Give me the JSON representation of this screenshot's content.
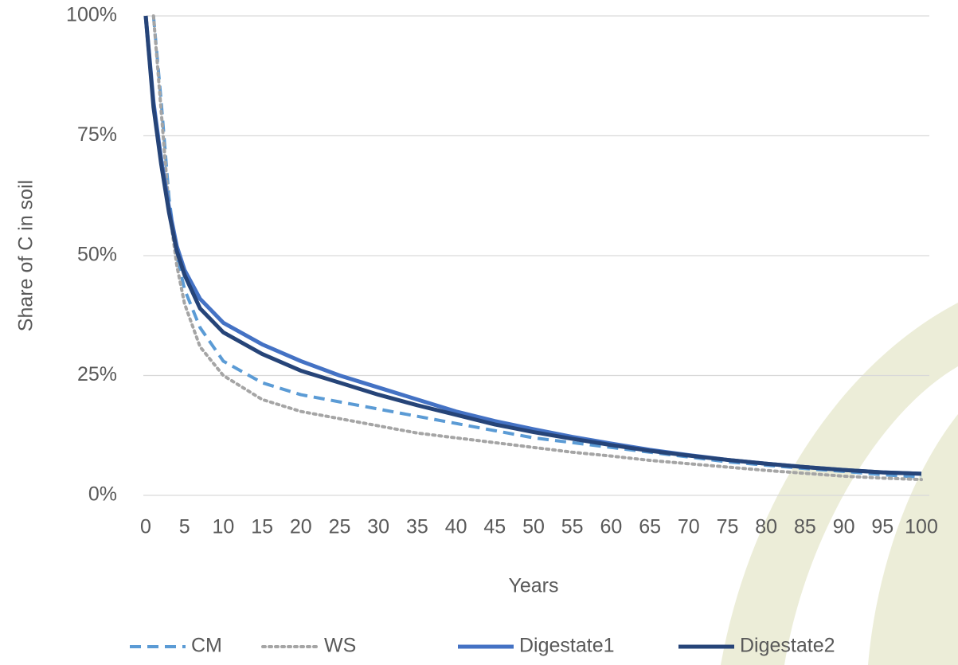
{
  "chart_data": {
    "type": "line",
    "y_label": "Share of C in soil",
    "x_label": "Years",
    "x": [
      0,
      1,
      2,
      3,
      4,
      5,
      7,
      10,
      15,
      20,
      25,
      30,
      35,
      40,
      45,
      50,
      55,
      60,
      65,
      70,
      75,
      80,
      85,
      90,
      95,
      100
    ],
    "xlim": [
      0,
      100
    ],
    "xticks": [
      0,
      5,
      10,
      15,
      20,
      25,
      30,
      35,
      40,
      45,
      50,
      55,
      60,
      65,
      70,
      75,
      80,
      85,
      90,
      95,
      100
    ],
    "ylim": [
      0,
      100
    ],
    "yticks": [
      {
        "value": 0,
        "label": "0%"
      },
      {
        "value": 25,
        "label": "25%"
      },
      {
        "value": 50,
        "label": "50%"
      },
      {
        "value": 75,
        "label": "75%"
      },
      {
        "value": 100,
        "label": "100%"
      }
    ],
    "grid": true,
    "legend": "bottom",
    "series": [
      {
        "name": "CM",
        "color": "#5b9bd5",
        "dash": "dashed",
        "values": [
          null,
          100,
          82,
          62,
          50,
          43,
          35,
          28,
          23.5,
          21,
          19.5,
          18,
          16.5,
          15,
          13.5,
          12,
          11,
          10,
          9,
          8,
          7,
          6.3,
          5.6,
          5,
          4.3,
          3.8
        ]
      },
      {
        "name": "WS",
        "color": "#a5a5a5",
        "dash": "dotted",
        "values": [
          null,
          100,
          80,
          60,
          48,
          40,
          31,
          25,
          20,
          17.5,
          16,
          14.5,
          13,
          12,
          11,
          10,
          9,
          8.2,
          7.3,
          6.6,
          5.9,
          5.2,
          4.6,
          4,
          3.6,
          3.3
        ]
      },
      {
        "name": "Digestate1",
        "color": "#4472c4",
        "dash": "solid",
        "values": [
          100,
          82,
          70,
          60,
          52,
          47,
          41,
          36,
          31.5,
          28,
          25,
          22.5,
          20,
          17.5,
          15.5,
          13.8,
          12.2,
          10.8,
          9.5,
          8.4,
          7.4,
          6.6,
          5.9,
          5.3,
          4.8,
          4.5
        ]
      },
      {
        "name": "Digestate2",
        "color": "#264478",
        "dash": "solid",
        "values": [
          100,
          81,
          69,
          59,
          51,
          46,
          39,
          34,
          29.5,
          26,
          23.5,
          21,
          18.8,
          16.8,
          14.8,
          13.2,
          11.8,
          10.5,
          9.3,
          8.3,
          7.4,
          6.6,
          5.9,
          5.3,
          4.8,
          4.5
        ]
      }
    ]
  }
}
